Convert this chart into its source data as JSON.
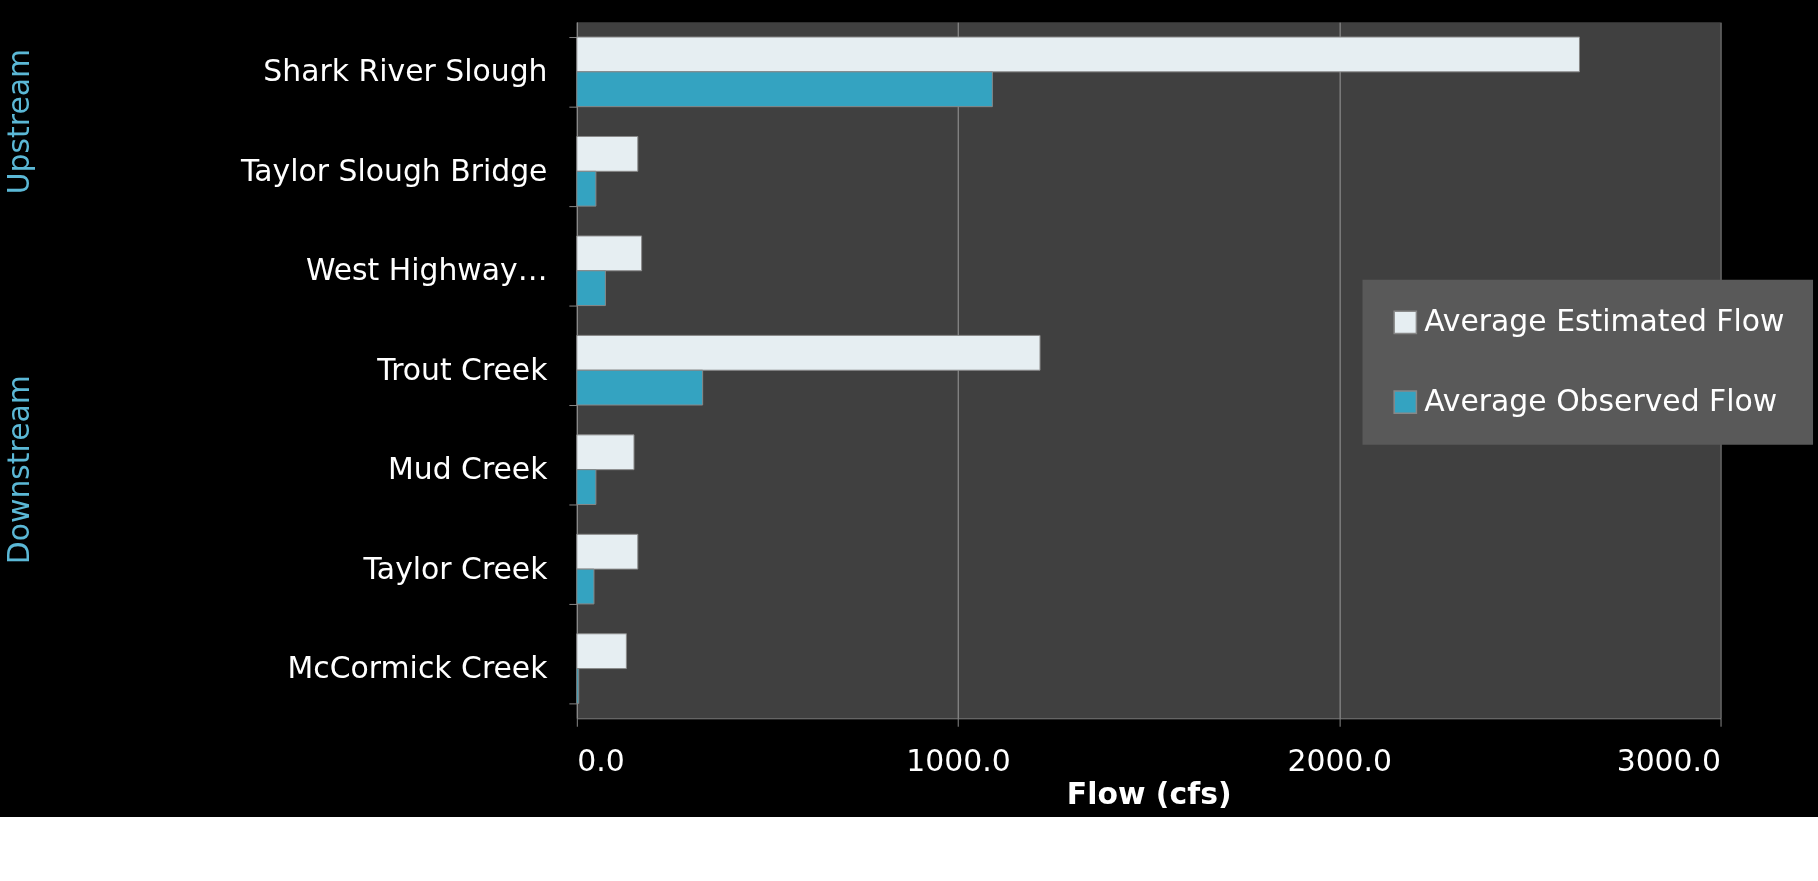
{
  "chart_data": {
    "type": "bar",
    "orientation": "horizontal",
    "xlabel": "Flow (cfs)",
    "categories": [
      "Shark River Slough",
      "Taylor Slough Bridge",
      "West Highway…",
      "Trout Creek",
      "Mud Creek",
      "Taylor Creek",
      "McCormick Creek"
    ],
    "series": [
      {
        "name": "Average Estimated Flow",
        "color": "#e6eef2",
        "values": [
          2630,
          160,
          170,
          1215,
          150,
          160,
          130
        ]
      },
      {
        "name": "Average Observed Flow",
        "color": "#34a3c1",
        "values": [
          1090,
          50,
          75,
          330,
          50,
          45,
          5
        ]
      }
    ],
    "xlim": [
      0,
      3000
    ],
    "xticks": [
      {
        "value": 0,
        "label": "0.0"
      },
      {
        "value": 1000,
        "label": "1000.0"
      },
      {
        "value": 2000,
        "label": "2000.0"
      },
      {
        "value": 3000,
        "label": "3000.0"
      }
    ],
    "grid": "x",
    "legend": "right",
    "annotations": [
      "Upstream",
      "Downstream"
    ]
  }
}
